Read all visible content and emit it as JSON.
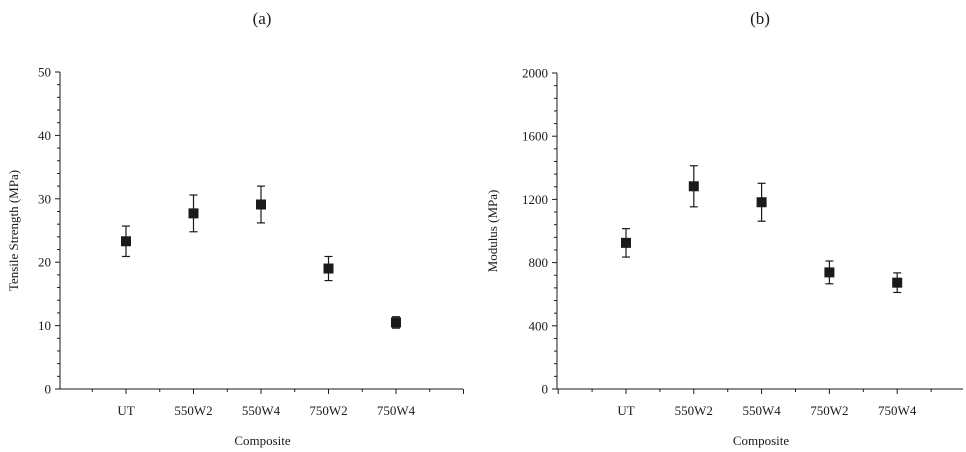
{
  "chart_data": [
    {
      "type": "scatter",
      "panel_label": "(a)",
      "categories": [
        "UT",
        "550W2",
        "550W4",
        "750W2",
        "750W4"
      ],
      "values": [
        23.3,
        27.7,
        29.1,
        19.0,
        10.5
      ],
      "errors": [
        2.4,
        2.9,
        2.9,
        1.9,
        0.9
      ],
      "xlabel": "Composite",
      "ylabel": "Tensile Strength (MPa)",
      "ylim": [
        0,
        50
      ],
      "yticks": [
        0,
        10,
        20,
        30,
        40,
        50
      ],
      "minor_ticks_per_major": 5,
      "grid": false,
      "marker": "square"
    },
    {
      "type": "scatter",
      "panel_label": "(b)",
      "categories": [
        "UT",
        "550W2",
        "550W4",
        "750W2",
        "750W4"
      ],
      "values": [
        925,
        1283,
        1182,
        738,
        673
      ],
      "errors": [
        90,
        130,
        120,
        72,
        62
      ],
      "xlabel": "Composite",
      "ylabel": "Modulus (MPa)",
      "ylim": [
        0,
        2000
      ],
      "yticks": [
        0,
        400,
        800,
        1200,
        1600,
        2000
      ],
      "minor_ticks_per_major": 5,
      "grid": false,
      "marker": "square"
    }
  ]
}
